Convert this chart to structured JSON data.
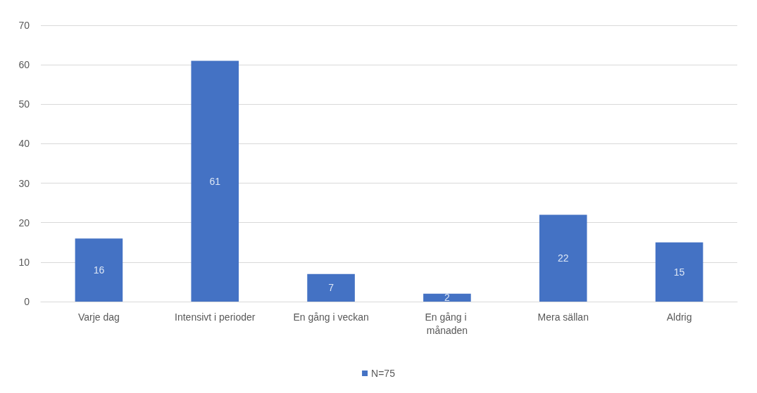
{
  "chart_data": {
    "type": "bar",
    "categories": [
      "Varje dag",
      "Intensivt i perioder",
      "En gång i veckan",
      "En gång i månaden",
      "Mera sällan",
      "Aldrig"
    ],
    "series": [
      {
        "name": "N=75",
        "color": "#4472c4",
        "values": [
          16,
          61,
          7,
          2,
          22,
          15
        ]
      }
    ],
    "ylim": [
      0,
      70
    ],
    "yticks": [
      0,
      10,
      20,
      30,
      40,
      50,
      60,
      70
    ],
    "grid": "y",
    "legend": "bottom",
    "data_labels": true
  }
}
